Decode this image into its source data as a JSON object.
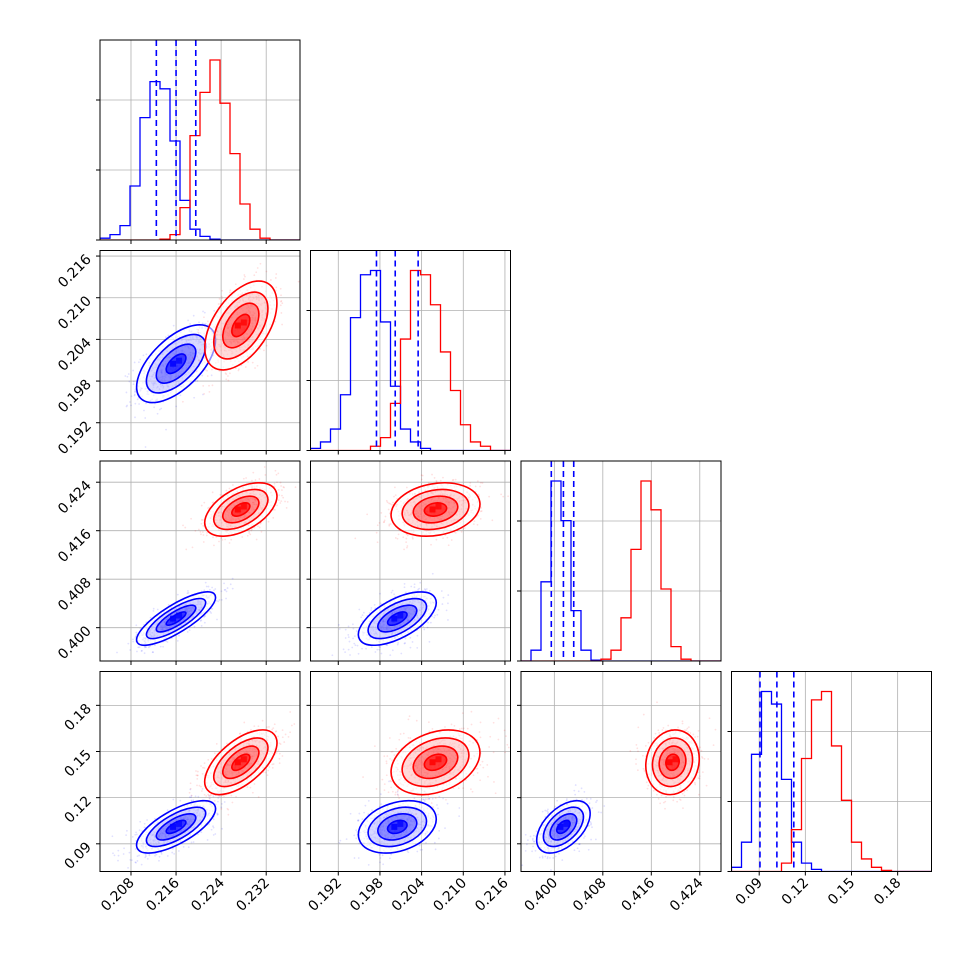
{
  "chart_data": {
    "type": "corner",
    "grid": true,
    "parameters": 4,
    "series": [
      {
        "color": "#0000ff",
        "means": [
          0.216,
          0.2005,
          0.4015,
          0.101
        ],
        "sds": [
          0.0035,
          0.0028,
          0.0022,
          0.0085
        ],
        "corr": [
          [
            1,
            0.6,
            0.8,
            0.7
          ],
          [
            0.6,
            1,
            0.6,
            0.3
          ],
          [
            0.8,
            0.6,
            1,
            0.5
          ],
          [
            0.7,
            0.3,
            0.5,
            1
          ]
        ],
        "quantiles": [
          [
            0.2125,
            0.216,
            0.2195
          ],
          [
            0.1975,
            0.2002,
            0.2035
          ],
          [
            0.3995,
            0.4015,
            0.4032
          ],
          [
            0.0905,
            0.1015,
            0.1125
          ]
        ]
      },
      {
        "color": "#ff0000",
        "means": [
          0.2275,
          0.206,
          0.4195,
          0.143
        ],
        "sds": [
          0.0032,
          0.0032,
          0.0022,
          0.0105
        ],
        "corr": [
          [
            1,
            0.5,
            0.5,
            0.6
          ],
          [
            0.5,
            1,
            0.2,
            0.3
          ],
          [
            0.5,
            0.2,
            1,
            0.1
          ],
          [
            0.6,
            0.3,
            0.1,
            1
          ]
        ],
        "quantiles": null
      }
    ],
    "axes": [
      {
        "range": [
          0.2025,
          0.238
        ],
        "ticks": [
          "0.208",
          "0.216",
          "0.224",
          "0.232"
        ]
      },
      {
        "range": [
          0.188,
          0.2168
        ],
        "ticks": [
          "0.192",
          "0.198",
          "0.204",
          "0.210",
          "0.216"
        ]
      },
      {
        "range": [
          0.3945,
          0.4275
        ],
        "ticks": [
          "0.400",
          "0.408",
          "0.416",
          "0.424"
        ]
      },
      {
        "range": [
          0.072,
          0.202
        ],
        "ticks": [
          "0.09",
          "0.12",
          "0.15",
          "0.18"
        ]
      }
    ],
    "histograms": [
      {
        "bins": 20,
        "blue_counts": [
          1,
          3,
          8,
          30,
          68,
          88,
          84,
          55,
          22,
          6,
          2,
          0.5,
          0,
          0,
          0,
          0,
          0,
          0,
          0,
          0
        ],
        "red_counts": [
          0,
          0,
          0,
          0,
          0,
          0,
          0.5,
          3,
          18,
          58,
          82,
          100,
          76,
          48,
          20,
          6,
          1,
          0,
          0,
          0
        ]
      },
      {
        "bins": 20,
        "blue_counts": [
          1,
          4,
          10,
          26,
          62,
          82,
          84,
          60,
          30,
          10,
          4,
          1,
          0,
          0,
          0,
          0,
          0,
          0,
          0,
          0
        ],
        "red_counts": [
          0,
          0,
          0,
          0,
          0,
          0,
          2,
          6,
          22,
          52,
          84,
          82,
          68,
          46,
          28,
          12,
          4,
          2,
          0,
          0
        ]
      },
      {
        "bins": 20,
        "blue_counts": [
          0,
          6,
          44,
          100,
          78,
          28,
          6,
          0.5,
          0,
          0,
          0,
          0,
          0,
          0,
          0,
          0,
          0,
          0,
          0,
          0
        ],
        "red_counts": [
          0,
          0,
          0,
          0,
          0,
          0,
          0,
          0,
          1,
          6,
          24,
          62,
          100,
          84,
          40,
          8,
          1,
          0,
          0,
          0
        ],
        "bins_override": 40
      },
      {
        "bins": 20,
        "blue_counts": [
          2,
          14,
          56,
          86,
          80,
          44,
          14,
          4,
          1,
          0,
          0,
          0,
          0,
          0,
          0,
          0,
          0,
          0,
          0,
          0
        ],
        "red_counts": [
          0,
          0,
          0,
          0,
          0,
          4,
          20,
          54,
          82,
          86,
          60,
          34,
          14,
          6,
          2,
          0.5,
          0,
          0,
          0,
          0
        ]
      }
    ]
  }
}
